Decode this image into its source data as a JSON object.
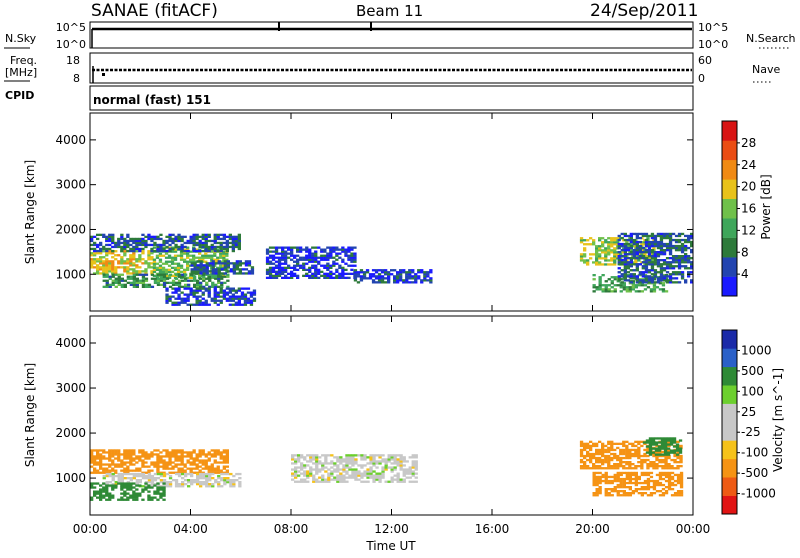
{
  "header": {
    "station": "SANAE (fitACF)",
    "beam": "Beam 11",
    "date": "24/Sep/2011"
  },
  "noise_panel": {
    "left_label": "N.Sky",
    "right_label": "N.Search",
    "left_ticks": [
      "10^5",
      "10^0"
    ],
    "right_ticks": [
      "10^5",
      "10^0"
    ]
  },
  "freq_panel": {
    "left_label_1": "Freq.",
    "left_label_2": "[MHz]",
    "left_ticks": [
      "18",
      "8"
    ],
    "right_label": "Nave",
    "right_ticks": [
      "60",
      "0"
    ]
  },
  "cpid": {
    "label": "CPID",
    "value": "normal (fast) 151"
  },
  "colors": {
    "power": [
      "#1a1aff",
      "#2244b0",
      "#2d7a3a",
      "#3ea65a",
      "#6fc04a",
      "#e8c21a",
      "#f08a14",
      "#ea4d14",
      "#d81414"
    ],
    "velocity": [
      "#e11414",
      "#ee5a14",
      "#f59314",
      "#f5c21a",
      "#c8c8c8",
      "#c8c8c8",
      "#6ccf2e",
      "#2e8a36",
      "#2a60c8",
      "#1a2aa8"
    ]
  },
  "chart_data": [
    {
      "type": "heatmap",
      "title": "Power [dB]",
      "xlabel": "",
      "ylabel": "Slant Range [km]",
      "x_ticks": [
        "00:00",
        "04:00",
        "08:00",
        "12:00",
        "16:00",
        "20:00",
        "00:00"
      ],
      "xlim_hours": [
        0,
        24
      ],
      "ylim_km": [
        180,
        4600
      ],
      "y_ticks": [
        1000,
        2000,
        3000,
        4000
      ],
      "colorbar": {
        "label": "Power [dB]",
        "ticks": [
          "4",
          "8",
          "12",
          "16",
          "20",
          "24",
          "28"
        ],
        "range": [
          0,
          30
        ]
      },
      "regions": [
        {
          "t": [
            0.0,
            2.5
          ],
          "r": [
            1000,
            1500
          ],
          "value": 18
        },
        {
          "t": [
            2.5,
            5.5
          ],
          "r": [
            900,
            1600
          ],
          "value": 14
        },
        {
          "t": [
            0.5,
            5.5
          ],
          "r": [
            700,
            1000
          ],
          "value": 10
        },
        {
          "t": [
            0.0,
            6.0
          ],
          "r": [
            1500,
            1900
          ],
          "value": 6
        },
        {
          "t": [
            4.0,
            6.5
          ],
          "r": [
            1000,
            1300
          ],
          "value": 6
        },
        {
          "t": [
            3.0,
            6.5
          ],
          "r": [
            300,
            700
          ],
          "value": 4
        },
        {
          "t": [
            7.0,
            10.5
          ],
          "r": [
            900,
            1600
          ],
          "value": 4
        },
        {
          "t": [
            10.5,
            13.5
          ],
          "r": [
            800,
            1100
          ],
          "value": 4
        },
        {
          "t": [
            19.5,
            22.5
          ],
          "r": [
            1200,
            1800
          ],
          "value": 16
        },
        {
          "t": [
            20.0,
            23.0
          ],
          "r": [
            600,
            1000
          ],
          "value": 12
        },
        {
          "t": [
            21.0,
            24.0
          ],
          "r": [
            800,
            1900
          ],
          "value": 6
        }
      ]
    },
    {
      "type": "heatmap",
      "title": "Velocity [m s^-1]",
      "xlabel": "Time UT",
      "ylabel": "Slant Range [km]",
      "x_ticks": [
        "00:00",
        "04:00",
        "08:00",
        "12:00",
        "16:00",
        "20:00",
        "00:00"
      ],
      "xlim_hours": [
        0,
        24
      ],
      "ylim_km": [
        180,
        4600
      ],
      "y_ticks": [
        1000,
        2000,
        3000,
        4000
      ],
      "colorbar": {
        "label": "Velocity [m s^-1]",
        "ticks": [
          "-1000",
          "-500",
          "-100",
          "-25",
          "25",
          "100",
          "500",
          "1000"
        ]
      },
      "regions": [
        {
          "t": [
            0.0,
            3.0
          ],
          "r": [
            1100,
            1600
          ],
          "value": -300
        },
        {
          "t": [
            3.0,
            5.5
          ],
          "r": [
            1100,
            1600
          ],
          "value": -150
        },
        {
          "t": [
            0.5,
            6.0
          ],
          "r": [
            800,
            1100
          ],
          "value": 0
        },
        {
          "t": [
            0.0,
            3.0
          ],
          "r": [
            500,
            900
          ],
          "value": 150
        },
        {
          "t": [
            8.0,
            13.0
          ],
          "r": [
            900,
            1500
          ],
          "value": 0
        },
        {
          "t": [
            19.5,
            23.5
          ],
          "r": [
            1200,
            1800
          ],
          "value": -300
        },
        {
          "t": [
            20.0,
            23.5
          ],
          "r": [
            600,
            1100
          ],
          "value": -150
        },
        {
          "t": [
            22.0,
            23.5
          ],
          "r": [
            1500,
            1900
          ],
          "value": 200
        }
      ]
    }
  ]
}
